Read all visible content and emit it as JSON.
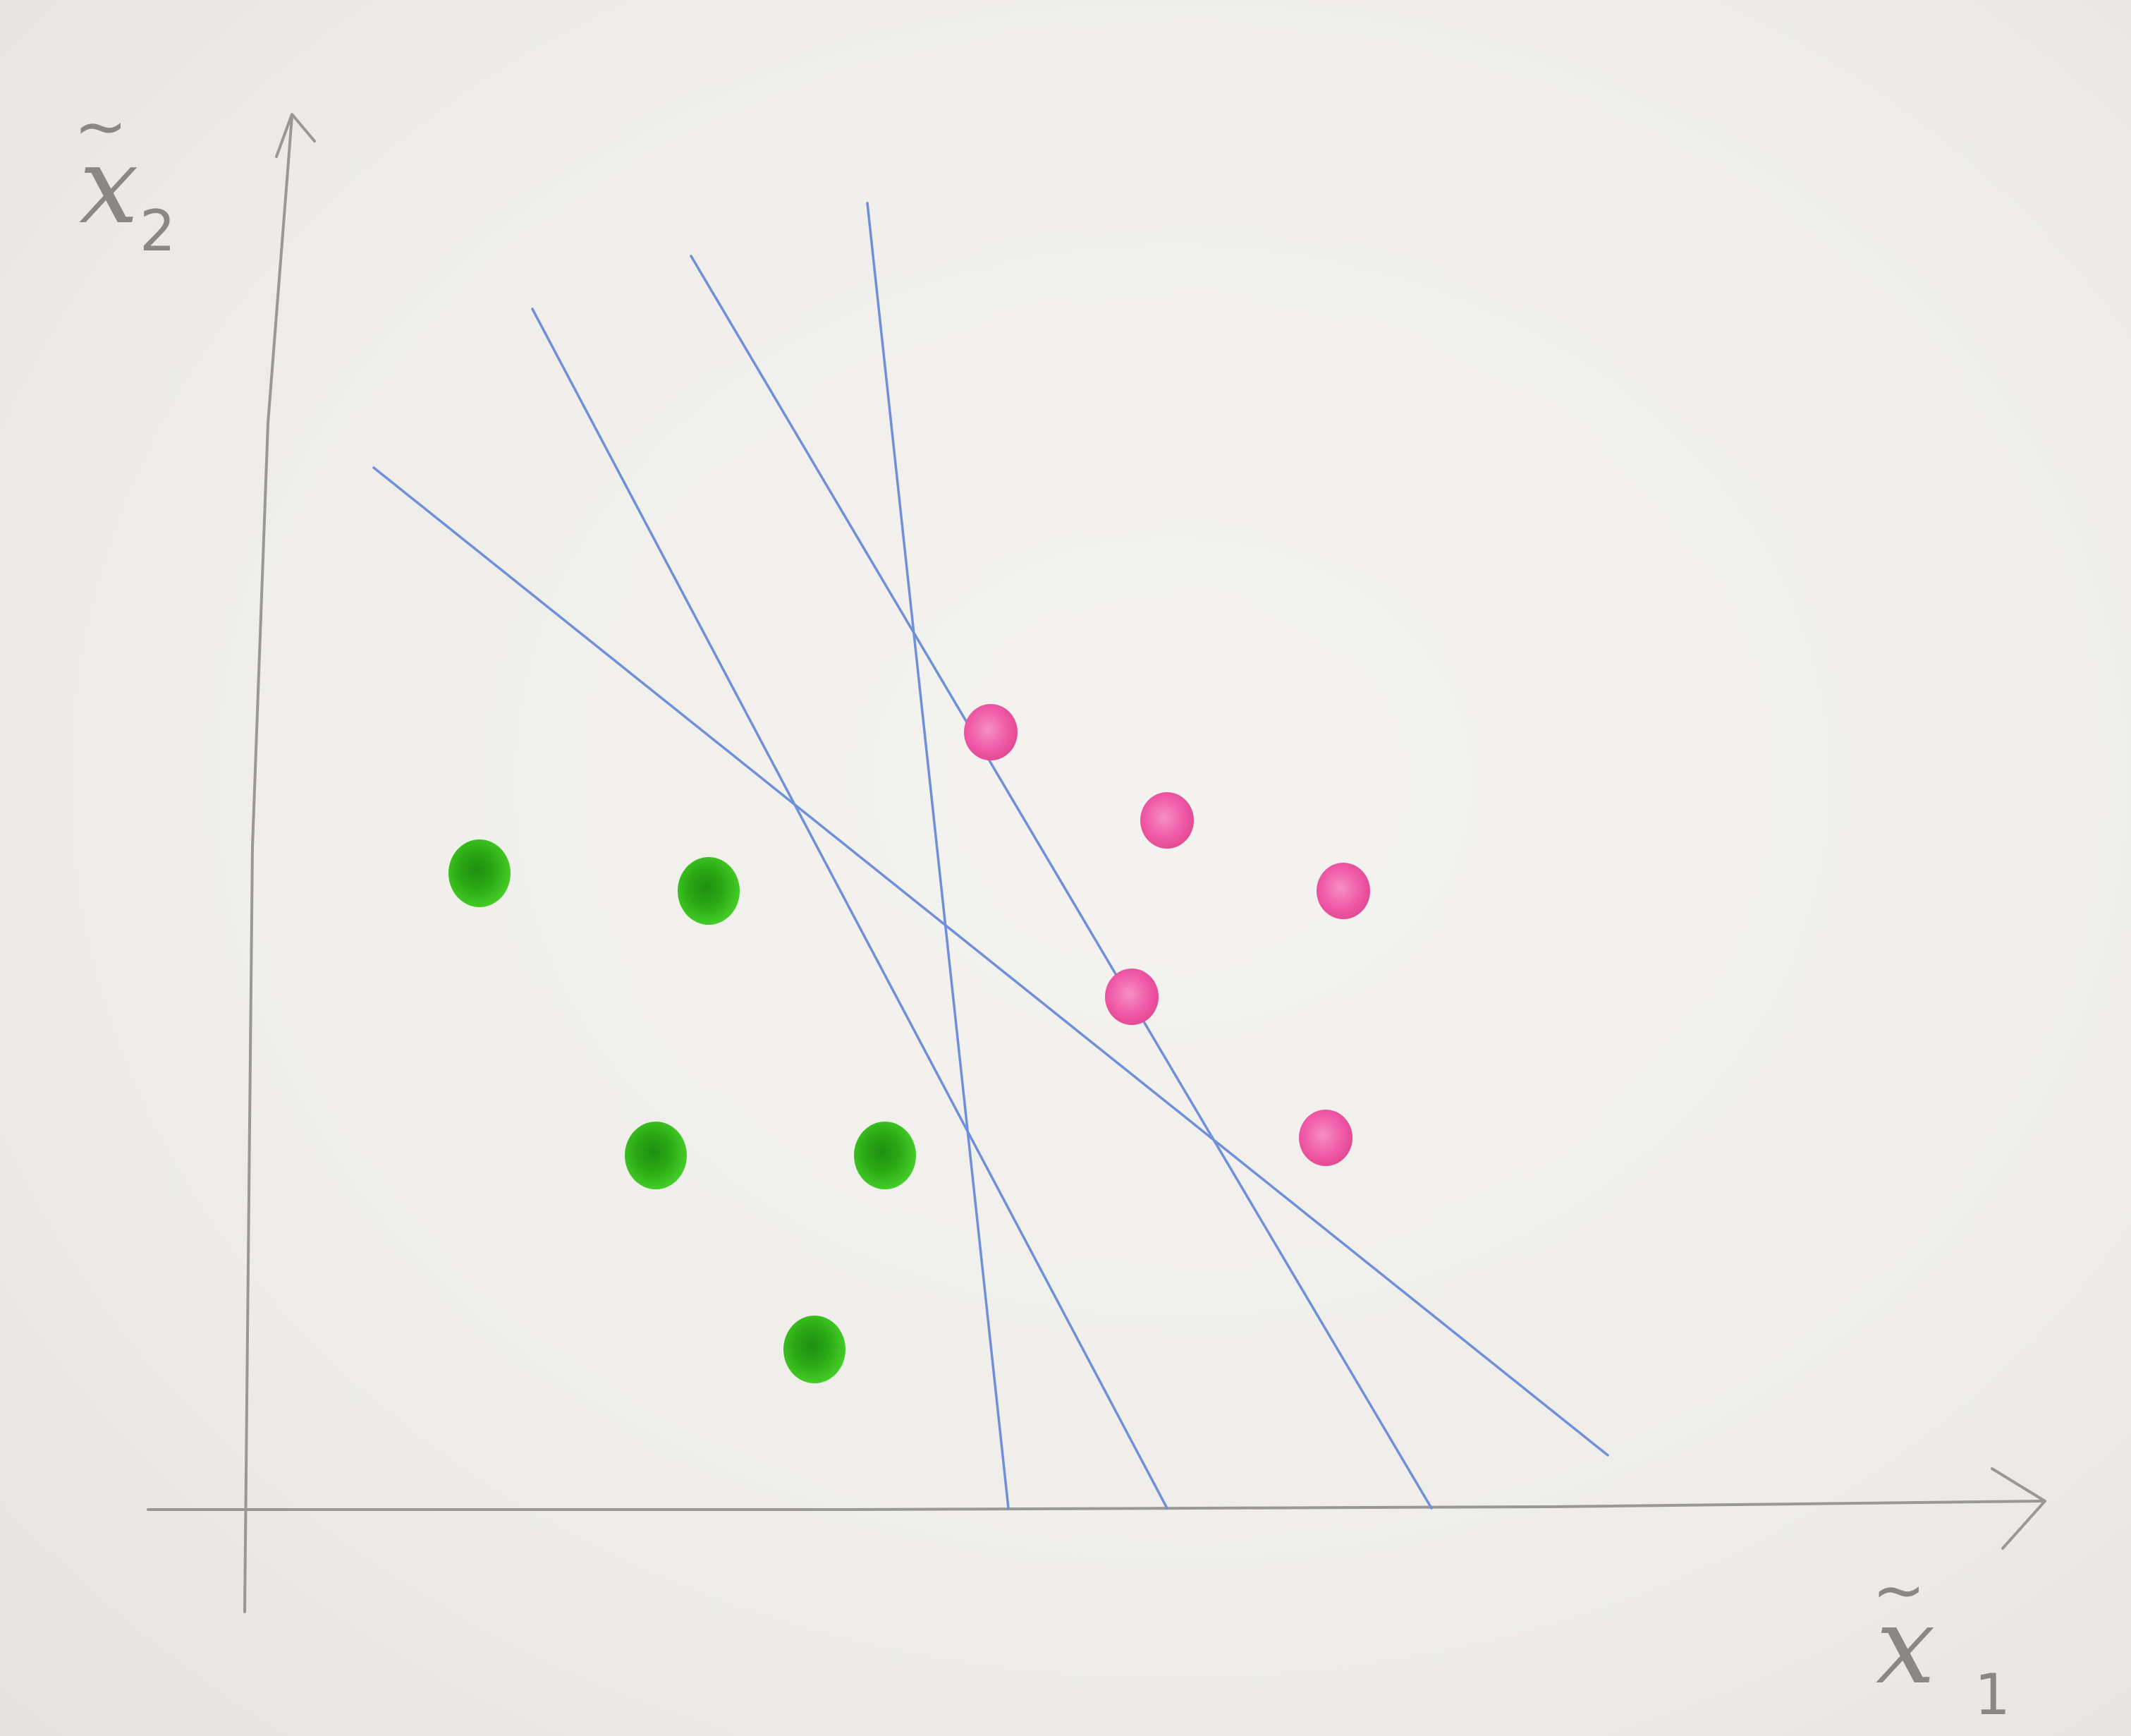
{
  "figure": {
    "x_axis": {
      "label": "x",
      "subscript": "1",
      "accent": "~"
    },
    "y_axis": {
      "label": "x",
      "subscript": "2",
      "accent": "~"
    }
  },
  "colors": {
    "paper": "#efeeea",
    "axes": "#9a9894",
    "separating_lines": "#6f8fd8",
    "class_a": "#35c21a",
    "class_a_dark": "#1f8f10",
    "class_b": "#f05aa8",
    "class_b_dark": "#d8307f"
  },
  "chart_data": {
    "type": "scatter",
    "xlim": [
      0,
      10
    ],
    "ylim": [
      0,
      8
    ],
    "series": [
      {
        "class": "green",
        "points": [
          [
            1.3,
            3.6
          ],
          [
            2.6,
            3.5
          ],
          [
            2.3,
            2.0
          ],
          [
            3.6,
            2.0
          ],
          [
            3.2,
            0.9
          ]
        ]
      },
      {
        "class": "pink",
        "points": [
          [
            4.2,
            4.4
          ],
          [
            5.2,
            3.9
          ],
          [
            6.2,
            3.5
          ],
          [
            5.0,
            2.9
          ],
          [
            6.1,
            2.1
          ]
        ]
      }
    ],
    "separating_lines": [
      {
        "from": [
          0.7,
          5.9
        ],
        "to": [
          7.7,
          0.3
        ]
      },
      {
        "from": [
          1.6,
          6.8
        ],
        "to": [
          5.2,
          0.0
        ]
      },
      {
        "from": [
          2.5,
          7.1
        ],
        "to": [
          6.7,
          0.0
        ]
      },
      {
        "from": [
          3.5,
          7.4
        ],
        "to": [
          4.3,
          0.0
        ]
      }
    ]
  }
}
